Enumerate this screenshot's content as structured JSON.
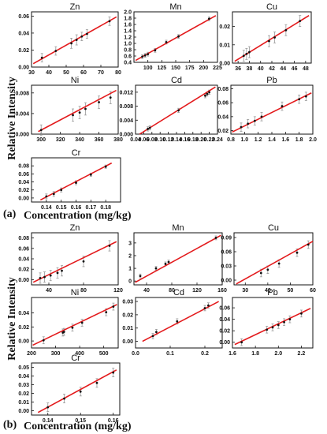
{
  "figure": {
    "y_label": "Relative Intensity",
    "x_label": "Concentration (mg/kg)"
  },
  "colors": {
    "fit_line": "#e31a1c",
    "points": "#111111",
    "error_bars": "#999999"
  },
  "chart_data": [
    {
      "panel": "(a)",
      "title": "Zn",
      "type": "scatter",
      "xlim": [
        30,
        80
      ],
      "ylim": [
        0,
        0.065
      ],
      "xticks": [
        30,
        40,
        50,
        60,
        70,
        80
      ],
      "xtick_labels": [
        "30",
        "40",
        "50",
        "60",
        "70",
        "80"
      ],
      "yticks": [
        0,
        0.02,
        0.04,
        0.06
      ],
      "ytick_labels": [
        "0.00",
        "0.02",
        "0.04",
        "0.06"
      ],
      "x": [
        36,
        44,
        53,
        56,
        59,
        62,
        75
      ],
      "y": [
        0.011,
        0.019,
        0.028,
        0.032,
        0.036,
        0.039,
        0.054
      ],
      "err": [
        0.005,
        0.005,
        0.006,
        0.006,
        0.005,
        0.005,
        0.005
      ],
      "fit": [
        [
          31,
          0.004
        ],
        [
          79,
          0.059
        ]
      ]
    },
    {
      "panel": "(a)",
      "title": "Mn",
      "type": "scatter",
      "xlim": [
        75,
        225
      ],
      "ylim": [
        0.4,
        2.0
      ],
      "xticks": [
        100,
        125,
        150,
        175,
        200,
        225
      ],
      "xtick_labels": [
        "100",
        "125",
        "150",
        "175",
        "200",
        "225"
      ],
      "yticks": [
        0.4,
        0.6,
        0.8,
        1.0,
        1.2,
        1.4,
        1.6,
        1.8,
        2.0
      ],
      "ytick_labels": [
        "0.4",
        "0.6",
        "0.8",
        "1.0",
        "1.2",
        "1.4",
        "1.6",
        "1.8",
        "2.0"
      ],
      "x": [
        90,
        95,
        100,
        113,
        133,
        155,
        210
      ],
      "y": [
        0.58,
        0.62,
        0.66,
        0.78,
        1.04,
        1.22,
        1.78
      ],
      "err": [
        0.06,
        0.06,
        0.06,
        0.06,
        0.06,
        0.06,
        0.06
      ],
      "fit": [
        [
          78,
          0.46
        ],
        [
          222,
          1.88
        ]
      ]
    },
    {
      "panel": "(a)",
      "title": "Cu",
      "type": "scatter",
      "xlim": [
        35,
        49
      ],
      "ylim": [
        0,
        0.028
      ],
      "xticks": [
        36,
        38,
        40,
        42,
        44,
        46,
        48
      ],
      "xtick_labels": [
        "36",
        "38",
        "40",
        "42",
        "44",
        "46",
        "48"
      ],
      "yticks": [
        0,
        0.01,
        0.02
      ],
      "ytick_labels": [
        "0.00",
        "0.01",
        "0.02"
      ],
      "x": [
        37,
        37.5,
        38,
        41.5,
        42.5,
        44.5,
        47
      ],
      "y": [
        0.004,
        0.005,
        0.006,
        0.012,
        0.014,
        0.018,
        0.023
      ],
      "err": [
        0.003,
        0.003,
        0.003,
        0.003,
        0.003,
        0.003,
        0.003
      ],
      "fit": [
        [
          35.4,
          0.001
        ],
        [
          48.6,
          0.026
        ]
      ]
    },
    {
      "panel": "(a)",
      "title": "Ni",
      "type": "scatter",
      "xlim": [
        290,
        380
      ],
      "ylim": [
        0,
        0.0095
      ],
      "xticks": [
        300,
        320,
        340,
        360,
        380
      ],
      "xtick_labels": [
        "300",
        "320",
        "340",
        "360",
        "380"
      ],
      "yticks": [
        0,
        0.004,
        0.008
      ],
      "ytick_labels": [
        "0.000",
        "0.004",
        "0.008"
      ],
      "x": [
        300,
        333,
        340,
        346,
        360,
        372
      ],
      "y": [
        0.0008,
        0.0037,
        0.0042,
        0.0049,
        0.0062,
        0.0071
      ],
      "err": [
        0.001,
        0.0012,
        0.0012,
        0.0012,
        0.0012,
        0.0012
      ],
      "fit": [
        [
          297,
          0.0005
        ],
        [
          378,
          0.0085
        ]
      ]
    },
    {
      "panel": "(a)",
      "title": "Cd",
      "type": "scatter",
      "xlim": [
        0.04,
        0.24
      ],
      "ylim": [
        0,
        0.014
      ],
      "xticks": [
        0.04,
        0.06,
        0.08,
        0.1,
        0.12,
        0.14,
        0.16,
        0.18,
        0.2,
        0.22,
        0.24
      ],
      "xtick_labels": [
        "0.04",
        "0.06",
        "0.08",
        "0.10",
        "0.12",
        "0.14",
        "0.16",
        "0.18",
        "0.20",
        "0.22",
        "0.24"
      ],
      "yticks": [
        0,
        0.004,
        0.008,
        0.012
      ],
      "ytick_labels": [
        "0.000",
        "0.004",
        "0.008",
        "0.012"
      ],
      "x": [
        0.07,
        0.075,
        0.145,
        0.21,
        0.215,
        0.22
      ],
      "y": [
        0.0015,
        0.0018,
        0.0068,
        0.011,
        0.0115,
        0.012
      ],
      "err": [
        0.0006,
        0.0006,
        0.0006,
        0.0006,
        0.0006,
        0.0006
      ],
      "fit": [
        [
          0.05,
          0.0
        ],
        [
          0.235,
          0.0135
        ]
      ]
    },
    {
      "panel": "(a)",
      "title": "Pb",
      "type": "scatter",
      "xlim": [
        0.8,
        2.0
      ],
      "ylim": [
        0.015,
        0.085
      ],
      "xticks": [
        0.8,
        1.0,
        1.2,
        1.4,
        1.6,
        1.8,
        2.0
      ],
      "xtick_labels": [
        "0.8",
        "1.0",
        "1.2",
        "1.4",
        "1.6",
        "1.8",
        "2.0"
      ],
      "yticks": [
        0.02,
        0.04,
        0.06,
        0.08
      ],
      "ytick_labels": [
        "0.02",
        "0.04",
        "0.06",
        "0.08"
      ],
      "x": [
        0.95,
        1.05,
        1.15,
        1.25,
        1.55,
        1.8,
        1.9
      ],
      "y": [
        0.025,
        0.03,
        0.034,
        0.04,
        0.055,
        0.065,
        0.069
      ],
      "err": [
        0.006,
        0.006,
        0.006,
        0.006,
        0.006,
        0.006,
        0.006
      ],
      "fit": [
        [
          0.82,
          0.018
        ],
        [
          1.98,
          0.074
        ]
      ]
    },
    {
      "panel": "(a)",
      "title": "Cr",
      "type": "scatter",
      "xlim": [
        0.13,
        0.19
      ],
      "ylim": [
        -0.01,
        0.1
      ],
      "xticks": [
        0.14,
        0.15,
        0.16,
        0.17,
        0.18
      ],
      "xtick_labels": [
        "0.14",
        "0.15",
        "0.16",
        "0.17",
        "0.18"
      ],
      "yticks": [
        0,
        0.02,
        0.04,
        0.06,
        0.08
      ],
      "ytick_labels": [
        "0.00",
        "0.02",
        "0.04",
        "0.06",
        "0.08"
      ],
      "x": [
        0.14,
        0.145,
        0.15,
        0.16,
        0.17,
        0.18
      ],
      "y": [
        0.004,
        0.01,
        0.02,
        0.038,
        0.058,
        0.078
      ],
      "err": [
        0.006,
        0.006,
        0.005,
        0.005,
        0.004,
        0.004
      ],
      "fit": [
        [
          0.136,
          -0.005
        ],
        [
          0.184,
          0.087
        ]
      ]
    },
    {
      "panel": "(b)",
      "title": "Zn",
      "type": "scatter",
      "xlim": [
        20,
        120
      ],
      "ylim": [
        -0.01,
        0.09
      ],
      "xticks": [
        40,
        80,
        120
      ],
      "xtick_labels": [
        "40",
        "80",
        "120"
      ],
      "yticks": [
        0,
        0.02,
        0.04,
        0.06,
        0.08
      ],
      "ytick_labels": [
        "0.00",
        "0.02",
        "0.04",
        "0.06",
        "0.08"
      ],
      "x": [
        30,
        35,
        42,
        50,
        55,
        80,
        110
      ],
      "y": [
        0.003,
        0.005,
        0.008,
        0.013,
        0.017,
        0.035,
        0.065
      ],
      "err": [
        0.01,
        0.01,
        0.01,
        0.01,
        0.01,
        0.01,
        0.01
      ],
      "fit": [
        [
          22,
          -0.005
        ],
        [
          118,
          0.073
        ]
      ]
    },
    {
      "panel": "(b)",
      "title": "Mn",
      "type": "scatter",
      "xlim": [
        20,
        160
      ],
      "ylim": [
        -0.3,
        3.8
      ],
      "xticks": [
        40,
        80,
        120,
        160
      ],
      "xtick_labels": [
        "40",
        "80",
        "120",
        "160"
      ],
      "yticks": [
        0,
        1,
        2,
        3
      ],
      "ytick_labels": [
        "0",
        "1",
        "2",
        "3"
      ],
      "x": [
        30,
        55,
        70,
        75,
        150
      ],
      "y": [
        0.4,
        1.0,
        1.35,
        1.5,
        3.4
      ],
      "err": [
        0.15,
        0.15,
        0.15,
        0.15,
        0.15
      ],
      "fit": [
        [
          22,
          -0.1
        ],
        [
          158,
          3.6
        ]
      ]
    },
    {
      "panel": "(b)",
      "title": "Cu",
      "type": "scatter",
      "xlim": [
        25,
        60
      ],
      "ylim": [
        -0.01,
        0.1
      ],
      "xticks": [
        30,
        40,
        50,
        60
      ],
      "xtick_labels": [
        "30",
        "40",
        "50",
        "60"
      ],
      "yticks": [
        0,
        0.03,
        0.06,
        0.09
      ],
      "ytick_labels": [
        "0.00",
        "0.03",
        "0.06",
        "0.09"
      ],
      "x": [
        37,
        40,
        45,
        53,
        58
      ],
      "y": [
        0.015,
        0.022,
        0.035,
        0.058,
        0.075
      ],
      "err": [
        0.008,
        0.008,
        0.008,
        0.008,
        0.008
      ],
      "fit": [
        [
          26,
          -0.008
        ],
        [
          60,
          0.082
        ]
      ]
    },
    {
      "panel": "(b)",
      "title": "Ni",
      "type": "scatter",
      "xlim": [
        200,
        560
      ],
      "ylim": [
        -0.01,
        0.062
      ],
      "xticks": [
        200,
        300,
        400,
        500
      ],
      "xtick_labels": [
        "200",
        "300",
        "400",
        "500"
      ],
      "yticks": [
        0,
        0.02,
        0.04
      ],
      "ytick_labels": [
        "0.00",
        "0.02",
        "0.04"
      ],
      "x": [
        250,
        330,
        335,
        370,
        410,
        510,
        540
      ],
      "y": [
        0.001,
        0.012,
        0.013,
        0.019,
        0.026,
        0.041,
        0.049
      ],
      "err": [
        0.005,
        0.005,
        0.005,
        0.005,
        0.005,
        0.005,
        0.005
      ],
      "fit": [
        [
          205,
          -0.006
        ],
        [
          555,
          0.052
        ]
      ]
    },
    {
      "panel": "(b)",
      "title": "Cd",
      "type": "scatter",
      "xlim": [
        0,
        0.25
      ],
      "ylim": [
        -0.005,
        0.033
      ],
      "xticks": [
        0.0,
        0.1,
        0.2
      ],
      "xtick_labels": [
        "0.0",
        "0.1",
        "0.2"
      ],
      "yticks": [
        0,
        0.01,
        0.02,
        0.03
      ],
      "ytick_labels": [
        "0.00",
        "0.01",
        "0.02",
        "0.03"
      ],
      "x": [
        0.05,
        0.06,
        0.12,
        0.2,
        0.21
      ],
      "y": [
        0.004,
        0.007,
        0.015,
        0.025,
        0.027
      ],
      "err": [
        0.002,
        0.002,
        0.002,
        0.002,
        0.002
      ],
      "fit": [
        [
          0.02,
          0.0
        ],
        [
          0.24,
          0.03
        ]
      ]
    },
    {
      "panel": "(b)",
      "title": "Pb",
      "type": "scatter",
      "xlim": [
        1.6,
        2.3
      ],
      "ylim": [
        -0.01,
        0.078
      ],
      "xticks": [
        1.6,
        1.8,
        2.0,
        2.2
      ],
      "xtick_labels": [
        "1.6",
        "1.8",
        "2.0",
        "2.2"
      ],
      "yticks": [
        0,
        0.02,
        0.04,
        0.06
      ],
      "ytick_labels": [
        "0.00",
        "0.02",
        "0.04",
        "0.06"
      ],
      "x": [
        1.68,
        1.9,
        1.95,
        2.0,
        2.05,
        2.1,
        2.2
      ],
      "y": [
        0.0,
        0.022,
        0.026,
        0.03,
        0.035,
        0.04,
        0.05
      ],
      "err": [
        0.006,
        0.006,
        0.006,
        0.006,
        0.006,
        0.006,
        0.006
      ],
      "fit": [
        [
          1.62,
          -0.004
        ],
        [
          2.28,
          0.059
        ]
      ]
    },
    {
      "panel": "(b)",
      "title": "Cr",
      "type": "scatter",
      "xlim": [
        0.135,
        0.162
      ],
      "ylim": [
        -0.005,
        0.055
      ],
      "xticks": [
        0.14,
        0.15,
        0.16
      ],
      "xtick_labels": [
        "0.14",
        "0.15",
        "0.16"
      ],
      "yticks": [
        0,
        0.01,
        0.02,
        0.03,
        0.04,
        0.05
      ],
      "ytick_labels": [
        "0.00",
        "0.01",
        "0.02",
        "0.03",
        "0.04",
        "0.05"
      ],
      "x": [
        0.14,
        0.145,
        0.15,
        0.155,
        0.16
      ],
      "y": [
        0.004,
        0.014,
        0.022,
        0.032,
        0.044
      ],
      "err": [
        0.005,
        0.005,
        0.005,
        0.005,
        0.005
      ],
      "fit": [
        [
          0.137,
          -0.002
        ],
        [
          0.161,
          0.047
        ]
      ]
    }
  ]
}
